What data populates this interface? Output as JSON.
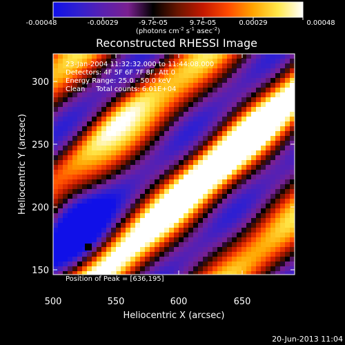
{
  "colorbar": {
    "ticks": [
      "-0.00048",
      "-0.00029",
      "-9.7e-05",
      "9.7e-05",
      "0.00029",
      "0.00048"
    ],
    "units_prefix": "(photons cm",
    "units_exp1": "-2",
    "units_mid": " s",
    "units_exp2": "-1",
    "units_suffix": " asec",
    "units_exp3": "-2",
    "units_close": ")",
    "palette": [
      "#1010e8",
      "#3020d0",
      "#5a20b0",
      "#7a2090",
      "#000000",
      "#6a1500",
      "#c41800",
      "#ff4a00",
      "#ffa400",
      "#ffe84a",
      "#ffffff"
    ]
  },
  "image": {
    "title": "Reconstructed RHESSI Image",
    "time_range": "23-Jan-2004 11:32:32.000 to 11:44:08.000",
    "detectors": "Detectors: 4F 5F 6F 7F 8F, Att 0",
    "energy": "Energy Range: 25.0 - 50.0 keV",
    "clean": "Clean     Total counts: 6.01E+04",
    "peak": "Position of Peak = [636,195]",
    "x_label": "Heliocentric X (arcsec)",
    "y_label": "Heliocentric Y (arcsec)",
    "x_ticks": [
      "500",
      "550",
      "600",
      "650"
    ],
    "y_ticks": [
      "150",
      "200",
      "250",
      "300"
    ],
    "footer_date": "20-Jun-2013 11:04"
  }
}
